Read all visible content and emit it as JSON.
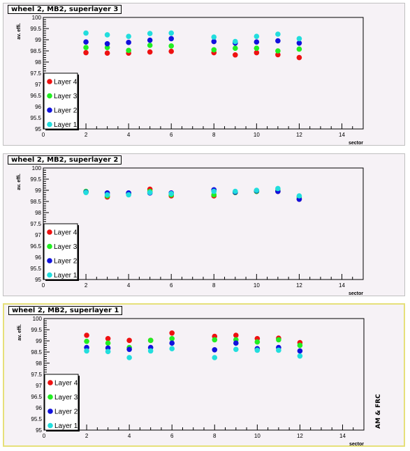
{
  "side_label": "AM & FRC",
  "colors": {
    "layer4": "#ee1111",
    "layer3": "#22ee22",
    "layer2": "#1111dd",
    "layer1": "#22dddd"
  },
  "chart_data": [
    {
      "type": "scatter",
      "title": "wheel 2, MB2, superlayer 3",
      "xlabel": "sector",
      "ylabel": "av. effi.",
      "xlim": [
        0,
        15
      ],
      "ylim": [
        95,
        100
      ],
      "xticks": [
        "0",
        "2",
        "4",
        "6",
        "8",
        "10",
        "12",
        "14"
      ],
      "yticks": [
        "95",
        "95.5",
        "96",
        "96.5",
        "97",
        "97.5",
        "98",
        "98.5",
        "99",
        "99.5",
        "100"
      ],
      "legend_position": "bottom-left",
      "series": [
        {
          "name": "Layer 4",
          "color": "#ee1111",
          "x": [
            2,
            3,
            4,
            5,
            6,
            8,
            9,
            10,
            11,
            12
          ],
          "y": [
            98.42,
            98.4,
            98.4,
            98.45,
            98.48,
            98.42,
            98.32,
            98.42,
            98.33,
            98.2
          ]
        },
        {
          "name": "Layer 3",
          "color": "#22ee22",
          "x": [
            2,
            3,
            4,
            5,
            6,
            8,
            9,
            10,
            11,
            12
          ],
          "y": [
            98.65,
            98.65,
            98.52,
            98.75,
            98.72,
            98.55,
            98.62,
            98.62,
            98.5,
            98.58
          ]
        },
        {
          "name": "Layer 2",
          "color": "#1111dd",
          "x": [
            2,
            3,
            4,
            5,
            6,
            8,
            9,
            10,
            11,
            12
          ],
          "y": [
            98.9,
            98.82,
            98.88,
            98.98,
            99.05,
            98.92,
            98.85,
            98.9,
            98.95,
            98.85
          ]
        },
        {
          "name": "Layer 1",
          "color": "#22dddd",
          "x": [
            2,
            3,
            4,
            5,
            6,
            8,
            9,
            10,
            11,
            12
          ],
          "y": [
            99.3,
            99.22,
            99.15,
            99.28,
            99.3,
            99.12,
            98.92,
            99.15,
            99.25,
            99.05
          ]
        }
      ]
    },
    {
      "type": "scatter",
      "title": "wheel 2, MB2, superlayer 2",
      "xlabel": "sector",
      "ylabel": "av. effi.",
      "xlim": [
        0,
        15
      ],
      "ylim": [
        95,
        100
      ],
      "xticks": [
        "0",
        "2",
        "4",
        "6",
        "8",
        "10",
        "12",
        "14"
      ],
      "yticks": [
        "95",
        "95.5",
        "96",
        "96.5",
        "97",
        "97.5",
        "98",
        "98.5",
        "99",
        "99.5",
        "100"
      ],
      "legend_position": "bottom-left",
      "series": [
        {
          "name": "Layer 4",
          "color": "#ee1111",
          "x": [
            2,
            3,
            4,
            5,
            6,
            8,
            9,
            10,
            11,
            12
          ],
          "y": [
            98.92,
            98.7,
            98.85,
            99.05,
            98.75,
            98.75,
            98.9,
            98.95,
            98.95,
            98.6
          ]
        },
        {
          "name": "Layer 3",
          "color": "#22ee22",
          "x": [
            2,
            3,
            4,
            5,
            6,
            8,
            9,
            10,
            11,
            12
          ],
          "y": [
            98.95,
            98.75,
            98.85,
            98.95,
            98.8,
            98.8,
            98.9,
            98.95,
            99.0,
            98.7
          ]
        },
        {
          "name": "Layer 2",
          "color": "#1111dd",
          "x": [
            2,
            3,
            4,
            5,
            6,
            8,
            9,
            10,
            11,
            12
          ],
          "y": [
            98.92,
            98.88,
            98.88,
            98.88,
            98.88,
            99.02,
            98.92,
            98.98,
            98.95,
            98.6
          ]
        },
        {
          "name": "Layer 1",
          "color": "#22dddd",
          "x": [
            2,
            3,
            4,
            5,
            6,
            8,
            9,
            10,
            11,
            12
          ],
          "y": [
            98.9,
            98.8,
            98.8,
            98.9,
            98.85,
            98.95,
            98.95,
            99.0,
            99.08,
            98.75
          ]
        }
      ]
    },
    {
      "type": "scatter",
      "title": "wheel 2, MB2, superlayer 1",
      "xlabel": "sector",
      "ylabel": "av. effi.",
      "xlim": [
        0,
        15
      ],
      "ylim": [
        95,
        100
      ],
      "xticks": [
        "0",
        "2",
        "4",
        "6",
        "8",
        "10",
        "12",
        "14"
      ],
      "yticks": [
        "95",
        "95.5",
        "96",
        "96.5",
        "97",
        "97.5",
        "98",
        "98.5",
        "99",
        "99.5",
        "100"
      ],
      "legend_position": "bottom-left",
      "series": [
        {
          "name": "Layer 4",
          "color": "#ee1111",
          "x": [
            2,
            3,
            4,
            5,
            6,
            8,
            9,
            10,
            11,
            12
          ],
          "y": [
            99.25,
            99.1,
            99.02,
            99.02,
            99.35,
            99.2,
            99.25,
            99.1,
            99.12,
            98.92
          ]
        },
        {
          "name": "Layer 3",
          "color": "#22ee22",
          "x": [
            2,
            3,
            4,
            5,
            6,
            8,
            9,
            10,
            11,
            12
          ],
          "y": [
            98.98,
            98.9,
            98.7,
            99.02,
            99.1,
            99.05,
            99.05,
            98.95,
            99.05,
            98.8
          ]
        },
        {
          "name": "Layer 2",
          "color": "#1111dd",
          "x": [
            2,
            3,
            4,
            5,
            6,
            8,
            9,
            10,
            11,
            12
          ],
          "y": [
            98.7,
            98.68,
            98.62,
            98.7,
            98.9,
            98.6,
            98.9,
            98.65,
            98.7,
            98.55
          ]
        },
        {
          "name": "Layer 1",
          "color": "#22dddd",
          "x": [
            2,
            3,
            4,
            5,
            6,
            8,
            9,
            10,
            11,
            12
          ],
          "y": [
            98.55,
            98.52,
            98.25,
            98.55,
            98.65,
            98.25,
            98.62,
            98.58,
            98.58,
            98.32
          ]
        }
      ]
    }
  ]
}
